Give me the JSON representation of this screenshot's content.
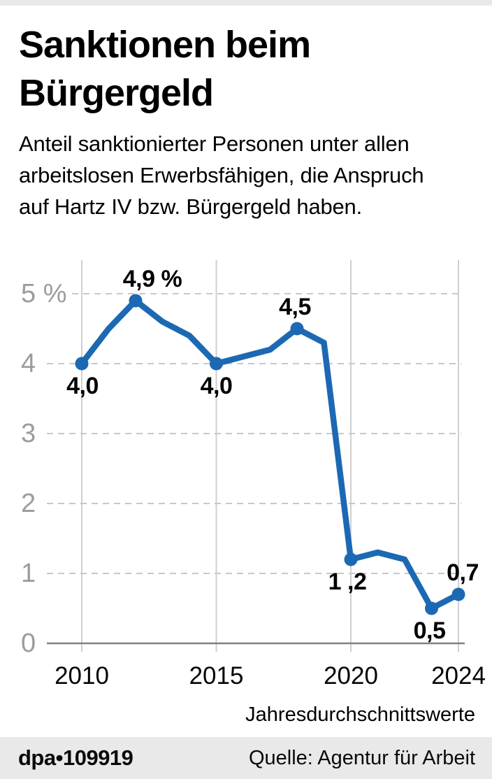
{
  "header": {
    "title_line1": "Sanktionen beim",
    "title_line2": "Bürgergeld",
    "subtitle_lines": [
      "Anteil sanktionierter Personen unter allen",
      "arbeitslosen Erwerbsfähigen, die Anspruch",
      "auf Hartz IV bzw. Bürgergeld haben."
    ]
  },
  "footer": {
    "credit": "dpa•109919",
    "source": "Quelle: Agentur für Arbeit"
  },
  "colors": {
    "line": "#1c69b3",
    "marker": "#1c69b3",
    "dashed_grid": "#c8c8c8",
    "vertical_grid": "#cfcfcf",
    "axis": "#808080",
    "tick_label_gray": "#9c9c9c",
    "bar_background": "#e9e9e9"
  },
  "chart_data": {
    "type": "line",
    "title": "Sanktionen beim Bürgergeld",
    "note": "Jahresdurchschnittswerte",
    "xlabel": "",
    "ylabel": "%",
    "x": [
      2010,
      2011,
      2012,
      2013,
      2014,
      2015,
      2016,
      2017,
      2018,
      2019,
      2020,
      2021,
      2022,
      2023,
      2024
    ],
    "values": [
      4.0,
      4.5,
      4.9,
      4.6,
      4.4,
      4.0,
      4.1,
      4.2,
      4.5,
      4.3,
      1.2,
      1.3,
      1.2,
      0.5,
      0.7
    ],
    "xlim": [
      2010,
      2024
    ],
    "ylim": [
      0,
      5.5
    ],
    "x_ticks": [
      2010,
      2015,
      2020,
      2024
    ],
    "y_ticks": [
      {
        "value": 5,
        "label": "5 %"
      },
      {
        "value": 4,
        "label": "4"
      },
      {
        "value": 3,
        "label": "3"
      },
      {
        "value": 2,
        "label": "2"
      },
      {
        "value": 1,
        "label": "1"
      },
      {
        "value": 0,
        "label": "0"
      }
    ],
    "grid": {
      "horizontal": "dashed",
      "vertical": "solid-at-x-ticks"
    },
    "legend": "none",
    "marked_years": [
      2010,
      2012,
      2015,
      2018,
      2020,
      2023,
      2024
    ],
    "annotations": [
      {
        "year": 2010,
        "text": "4,0",
        "placement": "below",
        "dx": 1
      },
      {
        "year": 2012,
        "text": "4,9 %",
        "placement": "above",
        "dx": 24
      },
      {
        "year": 2015,
        "text": "4,0",
        "placement": "below",
        "dx": 0
      },
      {
        "year": 2018,
        "text": "4,5",
        "placement": "above",
        "dx": -3
      },
      {
        "year": 2020,
        "text": "1 ,2",
        "placement": "below",
        "dx": -5
      },
      {
        "year": 2023,
        "text": "0,5",
        "placement": "below",
        "dx": -3
      },
      {
        "year": 2024,
        "text": "0,7",
        "placement": "above",
        "dx": 6
      }
    ]
  }
}
